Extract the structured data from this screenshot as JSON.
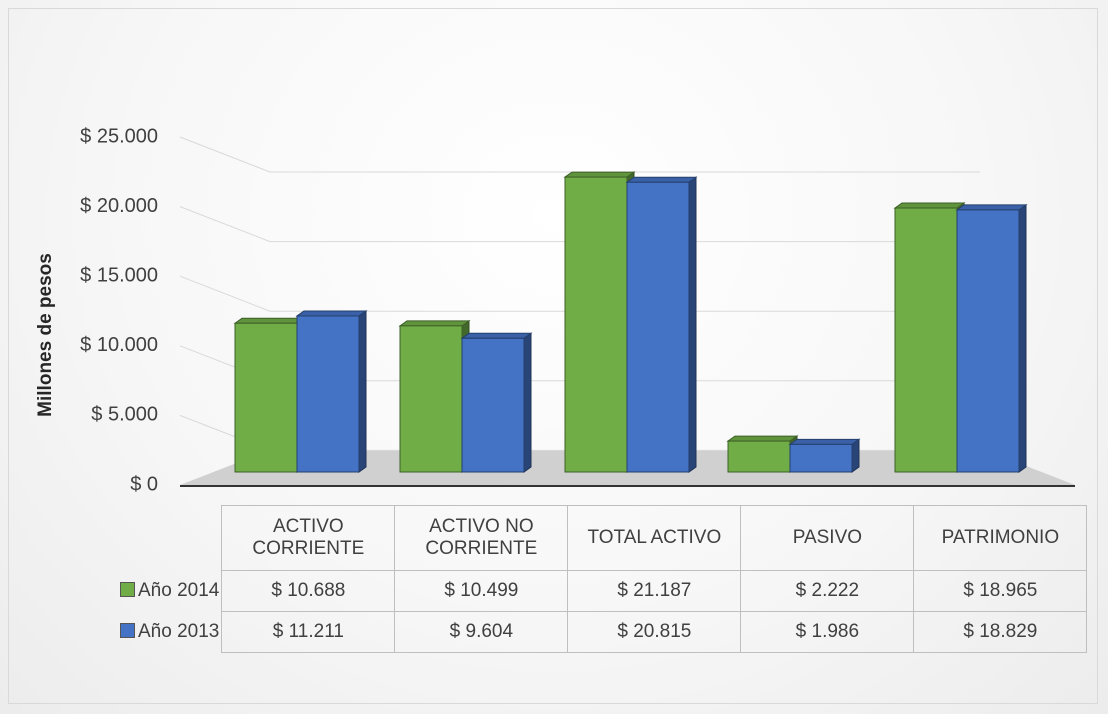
{
  "chart_data": {
    "type": "bar",
    "ylabel": "Millones de pesos",
    "categories": [
      "ACTIVO CORRIENTE",
      "ACTIVO NO CORRIENTE",
      "TOTAL ACTIVO",
      "PASIVO",
      "PATRIMONIO"
    ],
    "series": [
      {
        "name": "Año 2014",
        "color": "#70ad47",
        "values": [
          10688,
          10499,
          21187,
          2222,
          18965
        ],
        "value_labels": [
          "$ 10.688",
          "$ 10.499",
          "$ 21.187",
          "$ 2.222",
          "$ 18.965"
        ]
      },
      {
        "name": "Año 2013",
        "color": "#4472c4",
        "values": [
          11211,
          9604,
          20815,
          1986,
          18829
        ],
        "value_labels": [
          "$ 11.211",
          "$ 9.604",
          "$ 20.815",
          "$ 1.986",
          "$ 18.829"
        ]
      }
    ],
    "ylim": [
      0,
      25000
    ],
    "yticks": [
      {
        "value": 0,
        "label": "$ 0"
      },
      {
        "value": 5000,
        "label": "$ 5.000"
      },
      {
        "value": 10000,
        "label": "$ 10.000"
      },
      {
        "value": 15000,
        "label": "$ 15.000"
      },
      {
        "value": 20000,
        "label": "$ 20.000"
      },
      {
        "value": 25000,
        "label": "$ 25.000"
      }
    ],
    "grid": true
  }
}
